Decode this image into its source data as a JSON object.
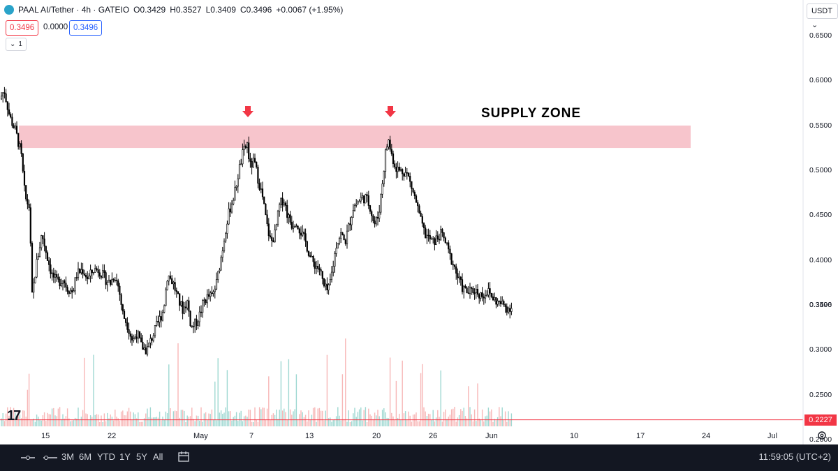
{
  "header": {
    "symbol": "PAAL AI/Tether · 4h · GATEIO",
    "open": "O0.3429",
    "high": "H0.3527",
    "low": "L0.3409",
    "close": "C0.3496",
    "change": "+0.0067 (+1.95%)",
    "bid": "0.3496",
    "spread": "0.0000",
    "ask": "0.3496",
    "indicator_count": "1"
  },
  "currency_button": "USDT",
  "current_price_label": "0.3496",
  "alert_line_label": "0.2227",
  "annotation": {
    "supply_zone_label": "SUPPLY ZONE"
  },
  "timeframes": [
    "3M",
    "6M",
    "YTD",
    "1Y",
    "5Y",
    "All"
  ],
  "clock": "11:59:05 (UTC+2)",
  "colors": {
    "supply_zone": "#f7c5cc",
    "arrow": "#f23645",
    "candle": "#000000",
    "alert_line": "#f23645",
    "volume_up": "#9fd8d2",
    "volume_down": "#f7b7b7",
    "bottom_bar": "#131722"
  },
  "chart_data": {
    "type": "candlestick",
    "y_axis": {
      "ticks": [
        "0.6500",
        "0.6000",
        "0.5500",
        "0.5000",
        "0.4500",
        "0.4000",
        "0.3500",
        "0.3000",
        "0.2500",
        "0.2000"
      ],
      "ylim": [
        0.196,
        0.667
      ],
      "position": "right"
    },
    "x_axis": {
      "ticks": [
        "15",
        "22",
        "May",
        "7",
        "13",
        "20",
        "26",
        "Jun",
        "10",
        "17",
        "24",
        "Jul"
      ]
    },
    "supply_zone": {
      "low": 0.5255,
      "high": 0.5505
    },
    "alert_price": 0.2227,
    "last_close": 0.3496,
    "close_path": [
      [
        0,
        0.58
      ],
      [
        6,
        0.59
      ],
      [
        14,
        0.56
      ],
      [
        22,
        0.545
      ],
      [
        30,
        0.52
      ],
      [
        36,
        0.47
      ],
      [
        42,
        0.46
      ],
      [
        46,
        0.36
      ],
      [
        52,
        0.395
      ],
      [
        60,
        0.43
      ],
      [
        66,
        0.41
      ],
      [
        74,
        0.385
      ],
      [
        82,
        0.375
      ],
      [
        90,
        0.38
      ],
      [
        96,
        0.37
      ],
      [
        104,
        0.365
      ],
      [
        110,
        0.385
      ],
      [
        118,
        0.39
      ],
      [
        126,
        0.38
      ],
      [
        134,
        0.39
      ],
      [
        142,
        0.39
      ],
      [
        150,
        0.38
      ],
      [
        158,
        0.375
      ],
      [
        164,
        0.385
      ],
      [
        170,
        0.37
      ],
      [
        176,
        0.34
      ],
      [
        182,
        0.33
      ],
      [
        190,
        0.31
      ],
      [
        196,
        0.32
      ],
      [
        202,
        0.305
      ],
      [
        210,
        0.3
      ],
      [
        218,
        0.315
      ],
      [
        226,
        0.33
      ],
      [
        234,
        0.345
      ],
      [
        240,
        0.385
      ],
      [
        248,
        0.375
      ],
      [
        256,
        0.355
      ],
      [
        262,
        0.345
      ],
      [
        268,
        0.355
      ],
      [
        274,
        0.325
      ],
      [
        280,
        0.33
      ],
      [
        286,
        0.34
      ],
      [
        292,
        0.355
      ],
      [
        298,
        0.36
      ],
      [
        304,
        0.36
      ],
      [
        310,
        0.375
      ],
      [
        318,
        0.41
      ],
      [
        324,
        0.44
      ],
      [
        330,
        0.46
      ],
      [
        336,
        0.475
      ],
      [
        342,
        0.5
      ],
      [
        348,
        0.52
      ],
      [
        354,
        0.53
      ],
      [
        358,
        0.505
      ],
      [
        364,
        0.51
      ],
      [
        370,
        0.49
      ],
      [
        376,
        0.47
      ],
      [
        382,
        0.44
      ],
      [
        388,
        0.42
      ],
      [
        394,
        0.43
      ],
      [
        400,
        0.46
      ],
      [
        406,
        0.47
      ],
      [
        412,
        0.45
      ],
      [
        418,
        0.44
      ],
      [
        424,
        0.445
      ],
      [
        432,
        0.43
      ],
      [
        438,
        0.42
      ],
      [
        446,
        0.4
      ],
      [
        452,
        0.395
      ],
      [
        458,
        0.39
      ],
      [
        464,
        0.37
      ],
      [
        470,
        0.365
      ],
      [
        476,
        0.39
      ],
      [
        482,
        0.42
      ],
      [
        488,
        0.43
      ],
      [
        494,
        0.42
      ],
      [
        500,
        0.44
      ],
      [
        506,
        0.46
      ],
      [
        512,
        0.465
      ],
      [
        518,
        0.47
      ],
      [
        524,
        0.47
      ],
      [
        530,
        0.46
      ],
      [
        536,
        0.44
      ],
      [
        542,
        0.45
      ],
      [
        548,
        0.49
      ],
      [
        552,
        0.52
      ],
      [
        556,
        0.535
      ],
      [
        560,
        0.52
      ],
      [
        566,
        0.505
      ],
      [
        572,
        0.5
      ],
      [
        578,
        0.5
      ],
      [
        584,
        0.495
      ],
      [
        590,
        0.48
      ],
      [
        596,
        0.465
      ],
      [
        602,
        0.445
      ],
      [
        608,
        0.43
      ],
      [
        614,
        0.425
      ],
      [
        620,
        0.42
      ],
      [
        626,
        0.425
      ],
      [
        632,
        0.43
      ],
      [
        638,
        0.42
      ],
      [
        644,
        0.405
      ],
      [
        650,
        0.395
      ],
      [
        656,
        0.38
      ],
      [
        662,
        0.37
      ],
      [
        668,
        0.365
      ],
      [
        674,
        0.365
      ],
      [
        680,
        0.368
      ],
      [
        686,
        0.363
      ],
      [
        692,
        0.362
      ],
      [
        698,
        0.366
      ],
      [
        704,
        0.36
      ],
      [
        710,
        0.355
      ],
      [
        716,
        0.352
      ],
      [
        722,
        0.35
      ],
      [
        728,
        0.347
      ],
      [
        734,
        0.3496
      ]
    ]
  }
}
